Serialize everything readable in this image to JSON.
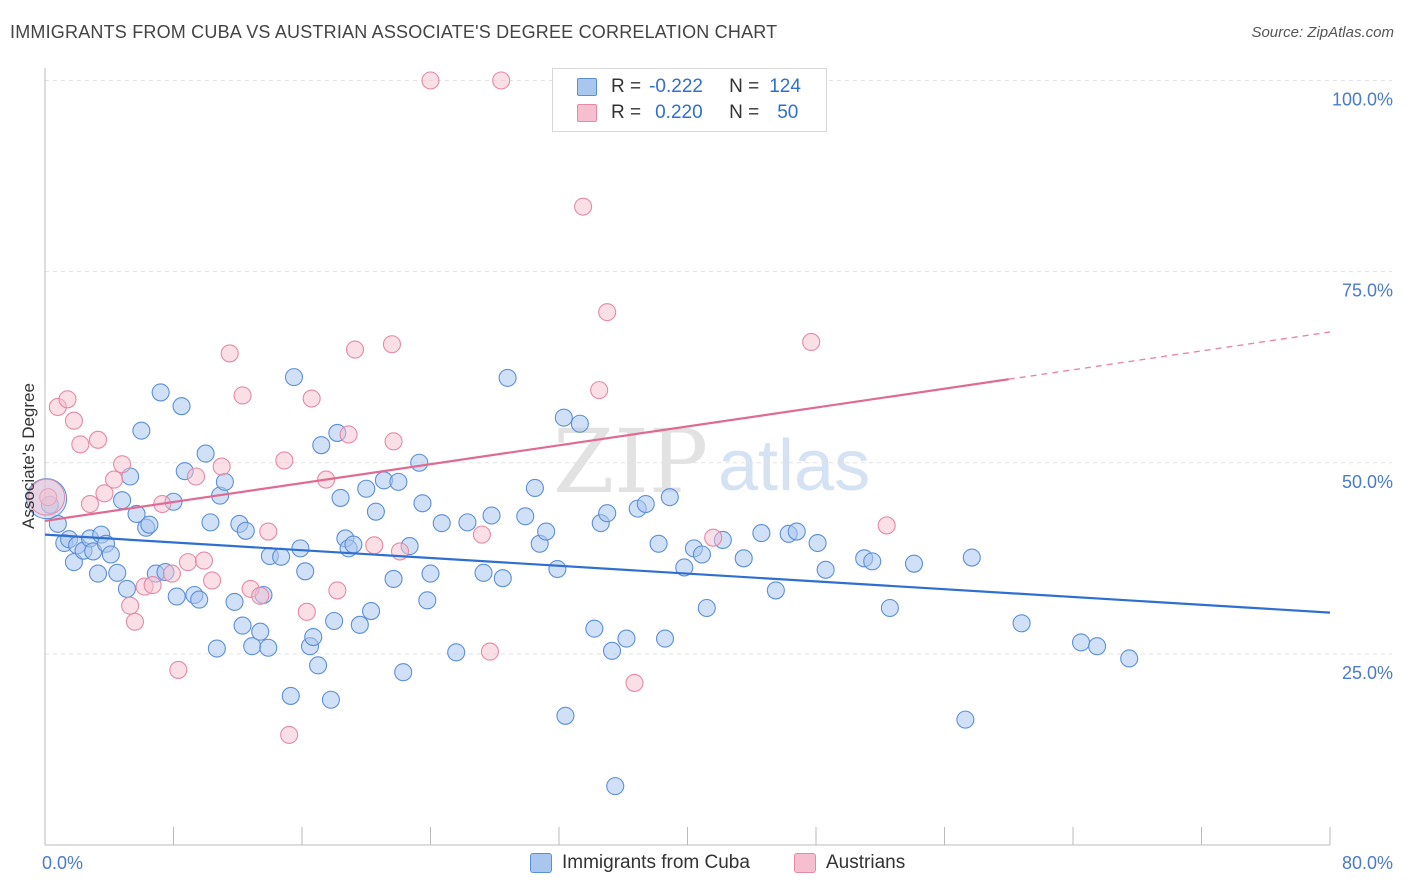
{
  "title": "IMMIGRANTS FROM CUBA VS AUSTRIAN ASSOCIATE'S DEGREE CORRELATION CHART",
  "source": "Source: ZipAtlas.com",
  "watermark": {
    "zip": "ZIP",
    "atlas": "atlas"
  },
  "legend": {
    "rows": [
      {
        "r_label": "R =",
        "r_value": "-0.222",
        "n_label": "N =",
        "n_value": "124",
        "color": "#a9c6ef",
        "border": "#5d8fd8"
      },
      {
        "r_label": "R =",
        "r_value": "0.220",
        "n_label": "N =",
        "n_value": "50",
        "color": "#f6bfd0",
        "border": "#e48aa6"
      }
    ]
  },
  "bottom_legend": [
    {
      "label": "Immigrants from Cuba",
      "color": "#a9c6ef",
      "border": "#5d8fd8"
    },
    {
      "label": "Austrians",
      "color": "#f6bfd0",
      "border": "#e48aa6"
    }
  ],
  "chart_data": {
    "type": "scatter",
    "xlabel": "",
    "ylabel": "Associate's Degree",
    "xlim": [
      0,
      80
    ],
    "ylim": [
      0,
      102
    ],
    "x_tick_labels": [
      "0.0%",
      "80.0%"
    ],
    "y_ticks": [
      25,
      50,
      75,
      100
    ],
    "y_tick_labels": [
      "25.0%",
      "50.0%",
      "75.0%",
      "100.0%"
    ],
    "grid": true,
    "colors": {
      "blue": "#2f6fd0",
      "pink": "#e06b92",
      "blue_fill": "#a9c6ef",
      "pink_fill": "#f6bfd0"
    },
    "series": [
      {
        "name": "Immigrants from Cuba",
        "color": "#5d8fd8",
        "fill": "#a9c6ef",
        "trend": {
          "x": [
            0,
            80
          ],
          "y": [
            40.6,
            30.4
          ]
        },
        "points": [
          [
            0.3,
            44.5
          ],
          [
            0.8,
            42
          ],
          [
            1.2,
            39.5
          ],
          [
            1.5,
            40
          ],
          [
            1.8,
            37
          ],
          [
            2,
            39.2
          ],
          [
            2.4,
            38.5
          ],
          [
            2.8,
            40.1
          ],
          [
            3,
            38.4
          ],
          [
            3.3,
            35.5
          ],
          [
            3.5,
            40.6
          ],
          [
            3.8,
            39.4
          ],
          [
            4.1,
            38
          ],
          [
            4.5,
            35.6
          ],
          [
            4.8,
            45.1
          ],
          [
            5.1,
            33.5
          ],
          [
            5.3,
            48.2
          ],
          [
            5.7,
            43.3
          ],
          [
            6,
            54.2
          ],
          [
            6.3,
            41.5
          ],
          [
            6.5,
            41.9
          ],
          [
            6.9,
            35.5
          ],
          [
            7.2,
            59.2
          ],
          [
            7.5,
            35.7
          ],
          [
            8,
            44.9
          ],
          [
            8.2,
            32.5
          ],
          [
            8.5,
            57.4
          ],
          [
            8.7,
            48.9
          ],
          [
            9.3,
            32.7
          ],
          [
            9.6,
            32.1
          ],
          [
            10,
            51.2
          ],
          [
            10.3,
            42.2
          ],
          [
            10.7,
            25.7
          ],
          [
            10.9,
            45.7
          ],
          [
            11.2,
            47.5
          ],
          [
            11.8,
            31.8
          ],
          [
            12.1,
            42
          ],
          [
            12.5,
            41.1
          ],
          [
            12.3,
            28.7
          ],
          [
            12.9,
            26
          ],
          [
            13.4,
            27.9
          ],
          [
            13.6,
            32.7
          ],
          [
            14,
            37.8
          ],
          [
            13.9,
            25.8
          ],
          [
            14.7,
            37.7
          ],
          [
            15.3,
            19.5
          ],
          [
            15.5,
            61.2
          ],
          [
            15.9,
            38.8
          ],
          [
            16.2,
            35.8
          ],
          [
            16.5,
            26
          ],
          [
            16.7,
            27.2
          ],
          [
            17,
            23.5
          ],
          [
            17.2,
            52.3
          ],
          [
            17.8,
            19
          ],
          [
            18,
            29.3
          ],
          [
            18.2,
            53.9
          ],
          [
            18.4,
            45.4
          ],
          [
            18.7,
            40.1
          ],
          [
            18.9,
            38.8
          ],
          [
            19.2,
            39.3
          ],
          [
            19.6,
            28.8
          ],
          [
            20,
            46.6
          ],
          [
            20.3,
            30.6
          ],
          [
            20.6,
            43.6
          ],
          [
            21.1,
            47.7
          ],
          [
            21.7,
            34.8
          ],
          [
            22,
            47.5
          ],
          [
            22.3,
            22.6
          ],
          [
            22.7,
            39.1
          ],
          [
            23.3,
            50
          ],
          [
            23.5,
            44.7
          ],
          [
            23.8,
            32
          ],
          [
            24,
            35.5
          ],
          [
            24.7,
            42.1
          ],
          [
            25.6,
            25.2
          ],
          [
            26.3,
            42.2
          ],
          [
            27.3,
            35.6
          ],
          [
            27.8,
            43.1
          ],
          [
            28.5,
            34.9
          ],
          [
            28.8,
            61.1
          ],
          [
            29.9,
            43
          ],
          [
            30.5,
            46.7
          ],
          [
            30.8,
            39.4
          ],
          [
            31.2,
            41
          ],
          [
            31.9,
            36.1
          ],
          [
            32.3,
            55.9
          ],
          [
            32.4,
            16.9
          ],
          [
            33.3,
            55.1
          ],
          [
            34.2,
            28.3
          ],
          [
            34.6,
            42.1
          ],
          [
            35,
            43.4
          ],
          [
            35.3,
            25.4
          ],
          [
            35.5,
            7.7
          ],
          [
            36.2,
            27
          ],
          [
            36.9,
            44
          ],
          [
            37.4,
            44.6
          ],
          [
            38.2,
            39.4
          ],
          [
            38.6,
            27
          ],
          [
            38.9,
            45.5
          ],
          [
            39.8,
            36.3
          ],
          [
            40.4,
            38.8
          ],
          [
            40.9,
            38
          ],
          [
            41.2,
            31
          ],
          [
            42.2,
            39.9
          ],
          [
            43.5,
            37.5
          ],
          [
            44.6,
            40.8
          ],
          [
            45.5,
            33.3
          ],
          [
            46.3,
            40.7
          ],
          [
            46.8,
            41
          ],
          [
            48.1,
            39.5
          ],
          [
            48.6,
            36
          ],
          [
            51,
            37.5
          ],
          [
            51.5,
            37.1
          ],
          [
            52.6,
            31
          ],
          [
            54.1,
            36.8
          ],
          [
            57.3,
            16.4
          ],
          [
            57.7,
            37.6
          ],
          [
            60.8,
            29
          ],
          [
            64.5,
            26.5
          ],
          [
            65.5,
            26
          ],
          [
            67.5,
            24.4
          ]
        ]
      },
      {
        "name": "Austrians",
        "color": "#e48aa6",
        "fill": "#f6bfd0",
        "trend": {
          "x": [
            0,
            80
          ],
          "y": [
            42.4,
            67.1
          ]
        },
        "trend_solid_until_x": 60,
        "points": [
          [
            0.2,
            45.5
          ],
          [
            0.8,
            57.3
          ],
          [
            1.4,
            58.3
          ],
          [
            1.8,
            55.5
          ],
          [
            2.2,
            52.4
          ],
          [
            2.8,
            44.6
          ],
          [
            3.3,
            53
          ],
          [
            3.7,
            46
          ],
          [
            4.3,
            47.8
          ],
          [
            4.8,
            49.8
          ],
          [
            5.3,
            31.3
          ],
          [
            5.6,
            29.2
          ],
          [
            6.2,
            33.8
          ],
          [
            6.7,
            34
          ],
          [
            7.3,
            44.6
          ],
          [
            7.9,
            35.5
          ],
          [
            8.3,
            22.9
          ],
          [
            8.9,
            37
          ],
          [
            9.4,
            48.2
          ],
          [
            9.9,
            37.2
          ],
          [
            10.4,
            34.6
          ],
          [
            11,
            49.5
          ],
          [
            11.5,
            64.3
          ],
          [
            12.3,
            58.8
          ],
          [
            12.8,
            33.5
          ],
          [
            13.4,
            32.6
          ],
          [
            13.9,
            41
          ],
          [
            14.9,
            50.3
          ],
          [
            15.2,
            14.4
          ],
          [
            16.3,
            30.5
          ],
          [
            16.6,
            58.4
          ],
          [
            17.5,
            47.8
          ],
          [
            18.2,
            33.3
          ],
          [
            18.9,
            53.7
          ],
          [
            19.3,
            64.8
          ],
          [
            20.5,
            39.2
          ],
          [
            21.6,
            65.5
          ],
          [
            21.7,
            52.8
          ],
          [
            22.1,
            38.4
          ],
          [
            24,
            100
          ],
          [
            27.2,
            40.6
          ],
          [
            27.7,
            25.3
          ],
          [
            28.4,
            100
          ],
          [
            33.5,
            83.5
          ],
          [
            34.5,
            59.5
          ],
          [
            35,
            69.7
          ],
          [
            36.7,
            21.2
          ],
          [
            41.6,
            40.2
          ],
          [
            47.7,
            65.8
          ],
          [
            52.4,
            41.8
          ]
        ]
      }
    ]
  }
}
